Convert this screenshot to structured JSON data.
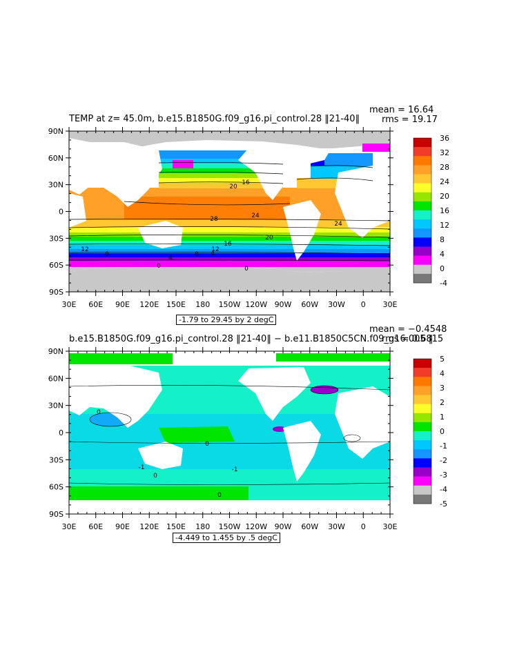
{
  "panels": [
    {
      "title": "TEMP at z=  45.0m, b.e15.B1850G.f09_g16.pi_control.28 ‖21-40‖",
      "mean_text": "mean = 16.64",
      "rms_text": "rms = 19.17",
      "range_text": "-1.79 to 29.45 by 2 degC",
      "colorbar_labels": [
        "36",
        "32",
        "28",
        "24",
        "20",
        "16",
        "12",
        "8",
        "4",
        "0",
        "-4"
      ],
      "colorbar_colors": [
        "#c80000",
        "#f03c28",
        "#ff7800",
        "#ffa028",
        "#ffc832",
        "#ffff28",
        "#96e600",
        "#00e600",
        "#14f0c8",
        "#00c8ff",
        "#1496ff",
        "#0000ff",
        "#9600c8",
        "#ff00ff",
        "#c8c8c8",
        "#787878"
      ],
      "contour_labels": [
        "20",
        "16",
        "28",
        "24",
        "24",
        "16",
        "12",
        "12",
        "8",
        "20",
        "8",
        "4",
        "0",
        "0",
        "4"
      ]
    },
    {
      "title": "b.e15.B1850G.f09_g16.pi_control.28 ‖21-40‖ − b.e11.B1850C5CN.f09_g16.005 ‖",
      "mean_text": "mean = −0.4548",
      "rms_text": "rms = 0.6815",
      "range_text": "-4.449 to 1.455 by .5 degC",
      "colorbar_labels": [
        "5",
        "4",
        "3",
        "2",
        "1",
        "0",
        "-1",
        "-2",
        "-3",
        "-4",
        "-5"
      ],
      "colorbar_colors": [
        "#c80000",
        "#f03c28",
        "#ff7800",
        "#ffa028",
        "#ffc832",
        "#ffff28",
        "#96e600",
        "#00e600",
        "#14f0c8",
        "#00c8ff",
        "#1496ff",
        "#0000ff",
        "#9600c8",
        "#ff00ff",
        "#c8c8c8",
        "#787878"
      ],
      "contour_labels": [
        "0",
        "0",
        "-1",
        "0",
        "-1",
        "0"
      ]
    }
  ],
  "axes": {
    "lat_labels": [
      "90N",
      "60N",
      "30N",
      "0",
      "30S",
      "60S",
      "90S"
    ],
    "lon_labels": [
      "30E",
      "60E",
      "90E",
      "120E",
      "150E",
      "180",
      "150W",
      "120W",
      "90W",
      "60W",
      "30W",
      "0",
      "30E"
    ]
  }
}
